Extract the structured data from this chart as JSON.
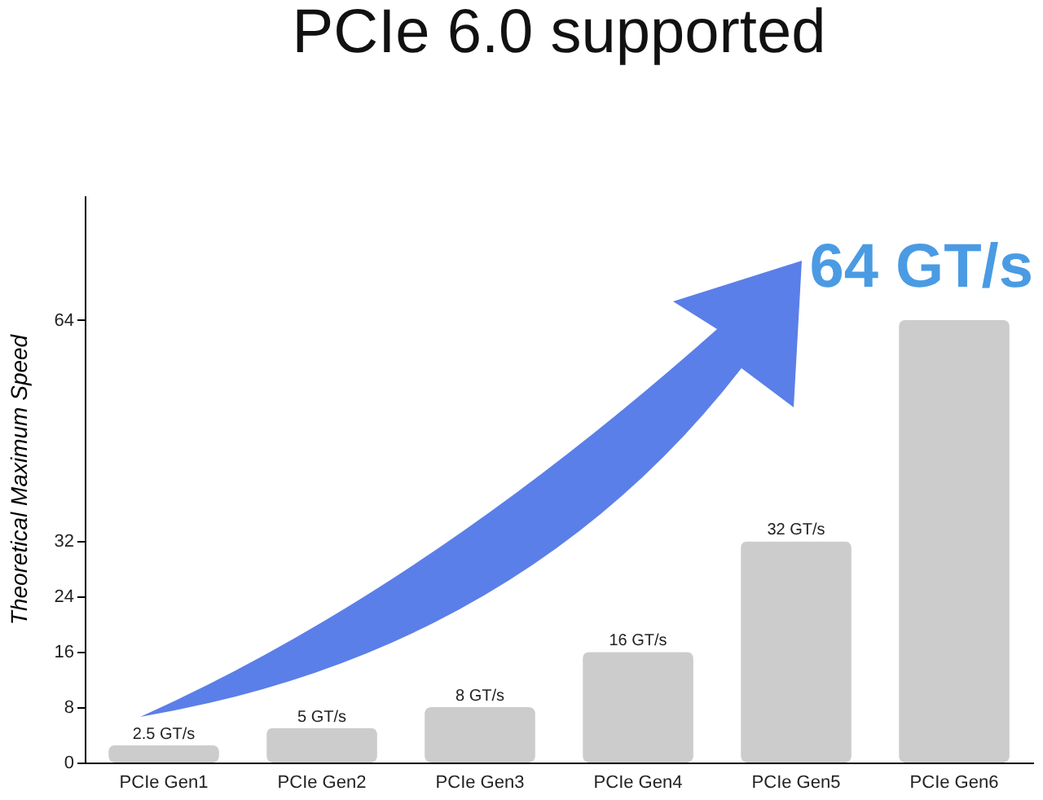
{
  "chart_data": {
    "type": "bar",
    "title": "PCIe 6.0 supported",
    "ylabel": "Theoretical Maximum Speed",
    "categories": [
      "PCIe Gen1",
      "PCIe Gen2",
      "PCIe Gen3",
      "PCIe Gen4",
      "PCIe Gen5",
      "PCIe Gen6"
    ],
    "values": [
      2.5,
      5,
      8,
      16,
      32,
      64
    ],
    "value_labels": [
      "2.5 GT/s",
      "5 GT/s",
      "8 GT/s",
      "16 GT/s",
      "32 GT/s",
      null
    ],
    "color": "#cccccc",
    "ylim": [
      0,
      82
    ],
    "yticks": [
      0,
      8,
      16,
      24,
      32,
      64
    ],
    "grid": false,
    "annotations": [
      "64 GT/s"
    ]
  }
}
